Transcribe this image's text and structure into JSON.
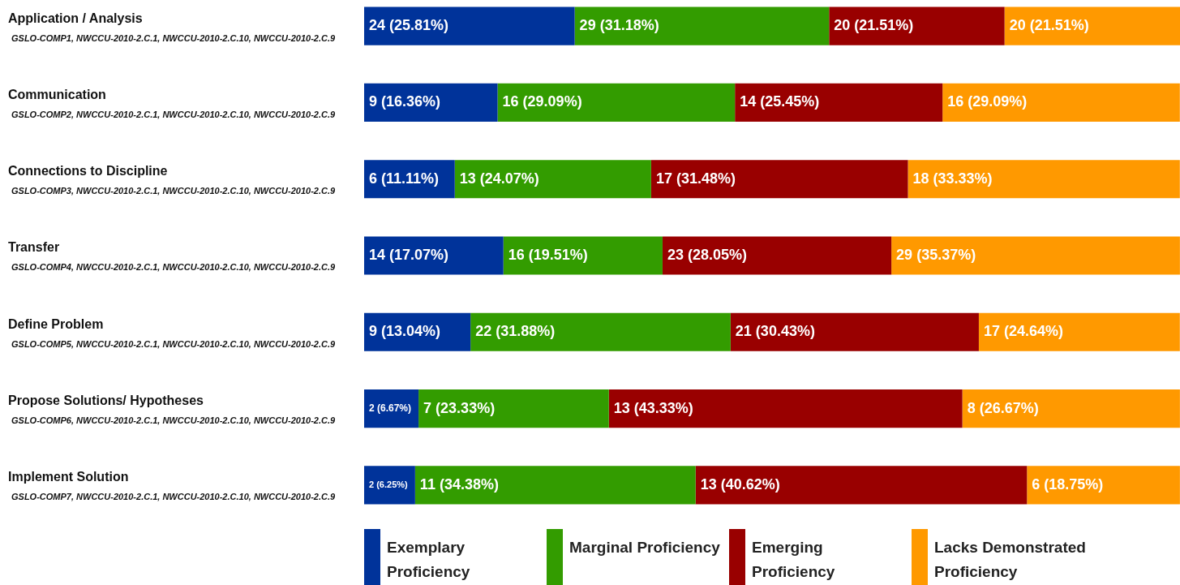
{
  "chart_data": {
    "type": "bar",
    "orientation": "horizontal",
    "stacked": true,
    "legend": "bottom",
    "tick_labels": "y",
    "xlim": [
      0,
      100.01
    ],
    "categories": [
      "Application / Analysis\nGSLO-COMP1, NWCCU-2010-2.C.1, NWCCU-2010-2.C.10, NWCCU-2010-2.C.9",
      "Communication\nGSLO-COMP2, NWCCU-2010-2.C.1, NWCCU-2010-2.C.10, NWCCU-2010-2.C.9",
      "Connections to Discipline\nGSLO-COMP3, NWCCU-2010-2.C.1, NWCCU-2010-2.C.10, NWCCU-2010-2.C.9",
      "Transfer\nGSLO-COMP4, NWCCU-2010-2.C.1, NWCCU-2010-2.C.10, NWCCU-2010-2.C.9",
      "Define Problem\nGSLO-COMP5, NWCCU-2010-2.C.1, NWCCU-2010-2.C.10, NWCCU-2010-2.C.9",
      "Propose Solutions/ Hypotheses\nGSLO-COMP6, NWCCU-2010-2.C.1, NWCCU-2010-2.C.10, NWCCU-2010-2.C.9",
      "Implement Solution\nGSLO-COMP7, NWCCU-2010-2.C.1, NWCCU-2010-2.C.10, NWCCU-2010-2.C.9"
    ],
    "series": [
      {
        "name": "Exemplary Proficiency",
        "color": "#00339a",
        "values": [
          25.81,
          16.36,
          11.11,
          17.07,
          13.04,
          6.67,
          6.25
        ],
        "value_labels": [
          "24 (25.81%)",
          "9 (16.36%)",
          "6 (11.11%)",
          "14 (17.07%)",
          "9 (13.04%)",
          "2 (6.67%)",
          "2 (6.25%)"
        ]
      },
      {
        "name": "Marginal Proficiency",
        "color": "#339c00",
        "values": [
          31.18,
          29.09,
          24.07,
          19.51,
          31.88,
          23.33,
          34.38
        ],
        "value_labels": [
          "29 (31.18%)",
          "16 (29.09%)",
          "13 (24.07%)",
          "16 (19.51%)",
          "22 (31.88%)",
          "7 (23.33%)",
          "11 (34.38%)"
        ]
      },
      {
        "name": "Emerging Proficiency",
        "color": "#990000",
        "values": [
          21.51,
          25.45,
          31.48,
          28.05,
          30.43,
          43.33,
          40.62
        ],
        "value_labels": [
          "20 (21.51%)",
          "14 (25.45%)",
          "17 (31.48%)",
          "23 (28.05%)",
          "21 (30.43%)",
          "13 (43.33%)",
          "13 (40.62%)"
        ]
      },
      {
        "name": "Lacks Demonstrated Proficiency",
        "color": "#ff9900",
        "values": [
          21.51,
          29.09,
          33.33,
          35.37,
          24.64,
          26.67,
          18.75
        ],
        "value_labels": [
          "20 (21.51%)",
          "16 (29.09%)",
          "18 (33.33%)",
          "29 (35.37%)",
          "17 (24.64%)",
          "8 (26.67%)",
          "6 (18.75%)"
        ]
      }
    ]
  }
}
